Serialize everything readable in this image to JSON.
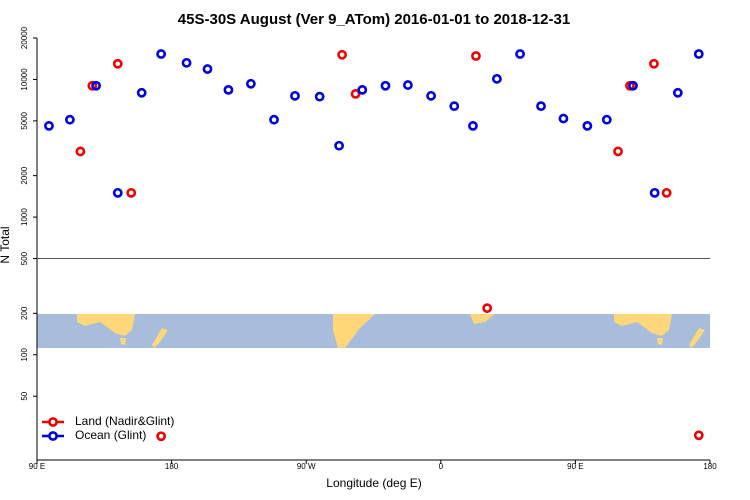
{
  "chart_data": {
    "type": "scatter",
    "title": "45S-30S August (Ver 9_ATom)   2016-01-01 to 2018-12-31",
    "xlabel": "Longitude (deg E)",
    "ylabel": "N Total",
    "xlim": [
      90,
      540
    ],
    "ylim": [
      17.2,
      20000
    ],
    "log_y": true,
    "hline": 500,
    "xticks": [
      {
        "value": 90,
        "label": "90 E"
      },
      {
        "value": 180,
        "label": "180"
      },
      {
        "value": 270,
        "label": "90 W"
      },
      {
        "value": 360,
        "label": "0"
      },
      {
        "value": 450,
        "label": "90 E"
      },
      {
        "value": 540,
        "label": "180"
      }
    ],
    "yticks": [
      50,
      100,
      200,
      500,
      1000,
      2000,
      5000,
      10000,
      20000
    ],
    "legend": "bottom-left",
    "series": [
      {
        "name": "Land (Nadir&Glint)",
        "color": "#ee0000",
        "x": [
          119,
          127,
          144,
          153,
          173,
          294,
          303,
          383.5,
          391,
          478.5,
          486.5,
          502.5,
          511,
          532.5
        ],
        "values": [
          3000,
          9000,
          13000,
          1500,
          25.6,
          15100,
          7850,
          14800,
          218,
          3000,
          9000,
          13000,
          1500,
          26
        ]
      },
      {
        "name": "Ocean (Glint)",
        "color": "#0000dd",
        "x": [
          98,
          112,
          129.5,
          144,
          160,
          173,
          190,
          204,
          218,
          233,
          248.5,
          262.5,
          279,
          292,
          307.5,
          323,
          338,
          353.5,
          369,
          381.5,
          397.5,
          413,
          427,
          442,
          458,
          471,
          488.5,
          503,
          518.5,
          532.5
        ],
        "values": [
          4600,
          5100,
          9000,
          1500,
          8000,
          15300,
          13200,
          11900,
          8400,
          9300,
          5100,
          7600,
          7500,
          3300,
          8400,
          9000,
          9100,
          7600,
          6400,
          4600,
          10100,
          15300,
          6400,
          5200,
          4600,
          5100,
          9000,
          1500,
          8000,
          15300
        ]
      }
    ]
  }
}
